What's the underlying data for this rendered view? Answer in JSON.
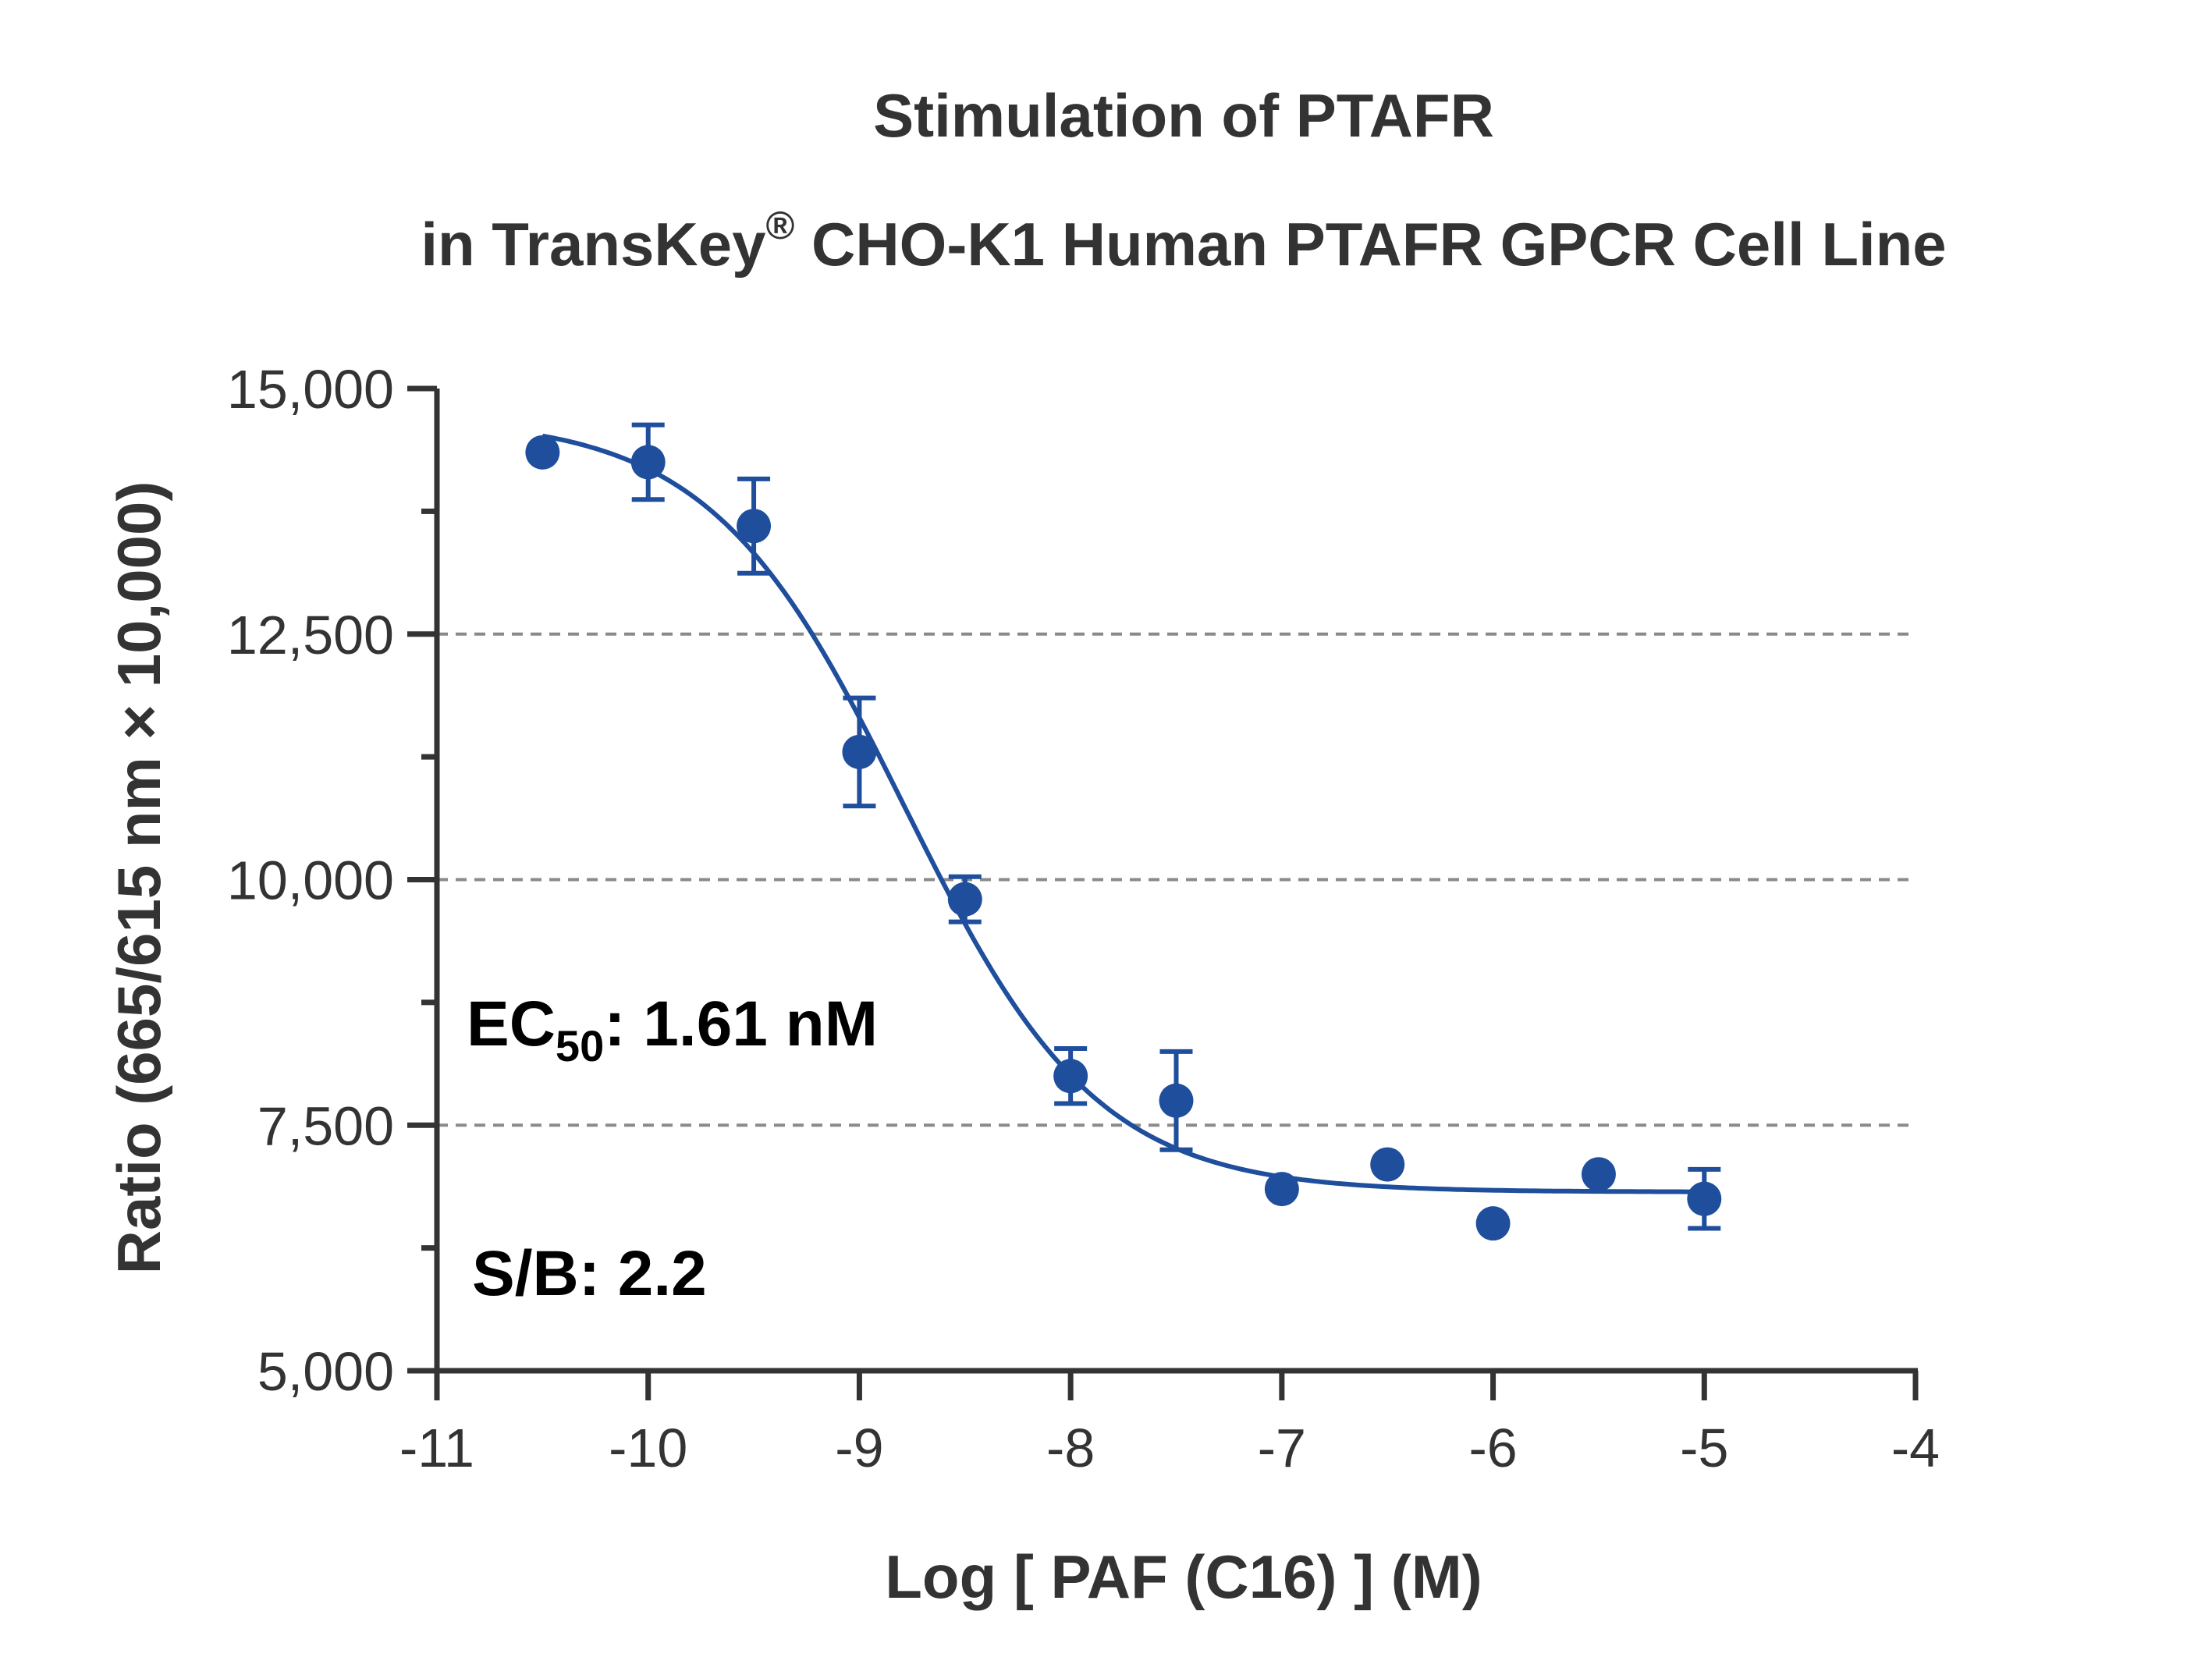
{
  "chart_data": {
    "type": "scatter",
    "title": {
      "line1": "Stimulation of  PTAFR",
      "line2_before": "in TransKey",
      "line2_sup": "®",
      "line2_after": " CHO-K1 Human PTAFR GPCR Cell Line"
    },
    "xlabel": "Log [ PAF (C16) ]  (M)",
    "ylabel": "Ratio (665/615 nm × 10,000)",
    "xlim": [
      -11,
      -4
    ],
    "ylim": [
      5000,
      15000
    ],
    "x_ticks": [
      -11,
      -10,
      -9,
      -8,
      -7,
      -6,
      -5,
      -4
    ],
    "x_tick_labels": [
      "-11",
      "-10",
      "-9",
      "-8",
      "-7",
      "-6",
      "-5",
      "-4"
    ],
    "y_ticks": [
      5000,
      7500,
      10000,
      12500,
      15000
    ],
    "y_tick_labels": [
      "5,000",
      "7,500",
      "10,000",
      "12,500",
      "15,000"
    ],
    "y_minor_ticks": [
      6250,
      8750,
      11250,
      13750
    ],
    "gridlines_y": [
      7500,
      10000,
      12500
    ],
    "grid": "horizontal dashed at major y ticks",
    "series": [
      {
        "color": "#1f4e9c",
        "x": [
          -10.5,
          -10,
          -9.5,
          -9,
          -8.5,
          -8,
          -7.5,
          -7,
          -6.5,
          -6,
          -5.5,
          -5
        ],
        "y": [
          14350,
          14250,
          13600,
          11300,
          9800,
          8000,
          7750,
          6850,
          7100,
          6500,
          7000,
          6750
        ],
        "error": [
          0,
          380,
          480,
          550,
          230,
          280,
          500,
          0,
          0,
          0,
          0,
          300
        ],
        "fit": {
          "model": "4PL",
          "top": 14700,
          "bottom": 6820,
          "log_ec50": -8.79,
          "hill": -0.95
        }
      }
    ],
    "annotations": {
      "ec50_prefix": "EC",
      "ec50_sub": "50",
      "ec50_value": ": 1.61 nM",
      "sb": "S/B: 2.2"
    }
  }
}
